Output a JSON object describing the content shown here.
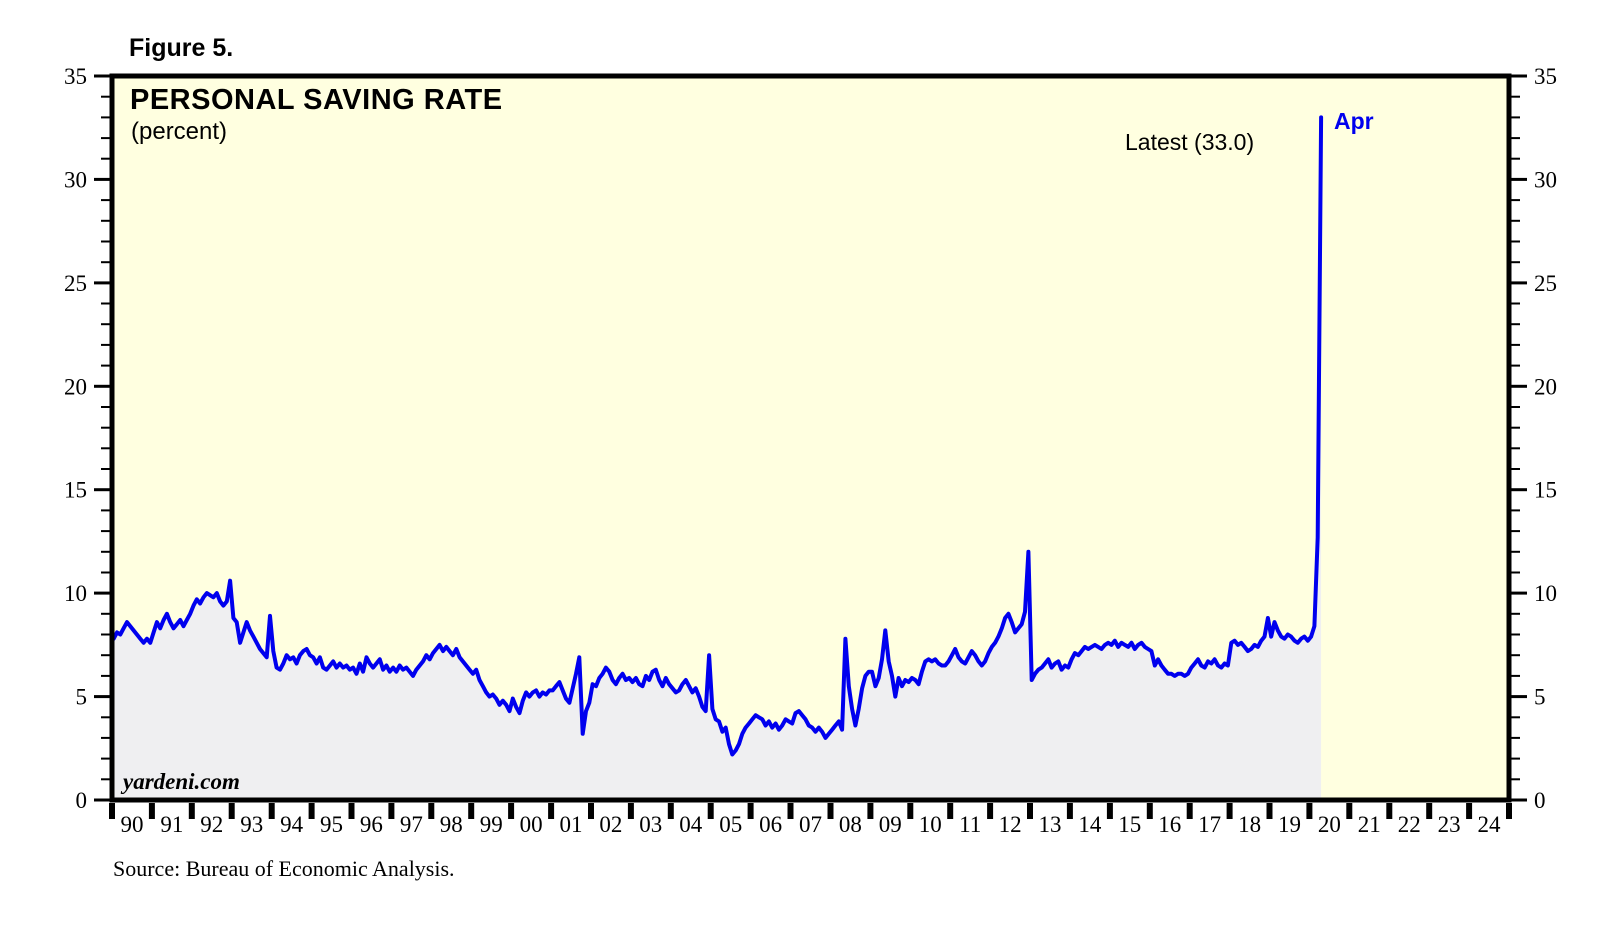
{
  "figure_label": "Figure 5.",
  "title": "PERSONAL SAVING RATE",
  "subtitle": "(percent)",
  "annotations": {
    "latest": "Latest (33.0)",
    "latest_month": "Apr",
    "watermark": "yardeni.com"
  },
  "source": "Source: Bureau of Economic Analysis.",
  "colors": {
    "line": "#0000EE",
    "plot_bg": "#FFFFE0",
    "area_fill": "#EFEFF1",
    "axis": "#000000",
    "annotation_blue": "#0000EE",
    "text": "#000000",
    "page_bg": "#FFFFFF"
  },
  "chart_data": {
    "type": "line",
    "title": "PERSONAL SAVING RATE",
    "ylabel": "percent",
    "frequency": "monthly",
    "x_start": "1990-01",
    "x_end": "2020-04",
    "x_range_years": [
      1990,
      2025
    ],
    "ylim": [
      0,
      35
    ],
    "y_major_ticks": [
      0,
      5,
      10,
      15,
      20,
      25,
      30,
      35
    ],
    "y_minor_step": 1,
    "grid": "off",
    "legend": "none",
    "area_under_line": true,
    "latest_value": 33.0,
    "latest_label": "Apr 2020",
    "x_tick_labels": [
      "90",
      "91",
      "92",
      "93",
      "94",
      "95",
      "96",
      "97",
      "98",
      "99",
      "00",
      "01",
      "02",
      "03",
      "04",
      "05",
      "06",
      "07",
      "08",
      "09",
      "10",
      "11",
      "12",
      "13",
      "14",
      "15",
      "16",
      "17",
      "18",
      "19",
      "20",
      "21",
      "22",
      "23",
      "24"
    ],
    "series": [
      {
        "name": "Personal saving rate (percent, monthly, Jan 1990 - Apr 2020)",
        "values": [
          7.8,
          8.1,
          8.0,
          8.3,
          8.6,
          8.4,
          8.2,
          8.0,
          7.8,
          7.6,
          7.8,
          7.6,
          8.1,
          8.6,
          8.3,
          8.7,
          9.0,
          8.6,
          8.3,
          8.5,
          8.7,
          8.4,
          8.7,
          9.0,
          9.4,
          9.7,
          9.5,
          9.8,
          10.0,
          9.9,
          9.8,
          10.0,
          9.6,
          9.4,
          9.6,
          10.6,
          8.8,
          8.6,
          7.6,
          8.1,
          8.6,
          8.2,
          7.9,
          7.6,
          7.3,
          7.1,
          6.9,
          8.9,
          7.2,
          6.4,
          6.3,
          6.6,
          7.0,
          6.8,
          6.9,
          6.6,
          7.0,
          7.2,
          7.3,
          7.0,
          6.9,
          6.6,
          6.9,
          6.4,
          6.3,
          6.5,
          6.7,
          6.4,
          6.6,
          6.4,
          6.5,
          6.3,
          6.4,
          6.1,
          6.6,
          6.2,
          6.9,
          6.6,
          6.4,
          6.6,
          6.8,
          6.3,
          6.5,
          6.2,
          6.4,
          6.2,
          6.5,
          6.3,
          6.4,
          6.2,
          6.0,
          6.3,
          6.5,
          6.7,
          7.0,
          6.8,
          7.1,
          7.3,
          7.5,
          7.2,
          7.4,
          7.2,
          7.0,
          7.3,
          6.9,
          6.7,
          6.5,
          6.3,
          6.1,
          6.3,
          5.8,
          5.5,
          5.2,
          5.0,
          5.1,
          4.9,
          4.6,
          4.8,
          4.6,
          4.3,
          4.9,
          4.5,
          4.2,
          4.8,
          5.2,
          5.0,
          5.2,
          5.3,
          5.0,
          5.2,
          5.1,
          5.3,
          5.3,
          5.5,
          5.7,
          5.3,
          4.9,
          4.7,
          5.4,
          6.1,
          6.9,
          3.2,
          4.3,
          4.7,
          5.6,
          5.5,
          5.9,
          6.1,
          6.4,
          6.2,
          5.8,
          5.6,
          5.9,
          6.1,
          5.8,
          5.9,
          5.7,
          5.9,
          5.6,
          5.5,
          6.0,
          5.8,
          6.2,
          6.3,
          5.8,
          5.5,
          5.9,
          5.6,
          5.4,
          5.2,
          5.3,
          5.6,
          5.8,
          5.5,
          5.2,
          5.4,
          5.0,
          4.5,
          4.3,
          7.0,
          4.4,
          3.9,
          3.8,
          3.3,
          3.5,
          2.7,
          2.2,
          2.4,
          2.7,
          3.2,
          3.5,
          3.7,
          3.9,
          4.1,
          4.0,
          3.9,
          3.6,
          3.8,
          3.5,
          3.7,
          3.4,
          3.6,
          3.9,
          3.8,
          3.7,
          4.2,
          4.3,
          4.1,
          3.9,
          3.6,
          3.5,
          3.3,
          3.5,
          3.3,
          3.0,
          3.2,
          3.4,
          3.6,
          3.8,
          3.4,
          7.8,
          5.5,
          4.4,
          3.6,
          4.4,
          5.4,
          6.0,
          6.2,
          6.2,
          5.5,
          5.9,
          6.8,
          8.2,
          6.7,
          6.0,
          5.0,
          5.9,
          5.5,
          5.8,
          5.7,
          5.9,
          5.8,
          5.6,
          6.2,
          6.7,
          6.8,
          6.7,
          6.8,
          6.6,
          6.5,
          6.5,
          6.7,
          7.0,
          7.3,
          6.9,
          6.7,
          6.6,
          6.9,
          7.2,
          7.0,
          6.7,
          6.5,
          6.7,
          7.1,
          7.4,
          7.6,
          7.9,
          8.3,
          8.8,
          9.0,
          8.6,
          8.1,
          8.3,
          8.5,
          9.1,
          12.0,
          5.8,
          6.1,
          6.3,
          6.4,
          6.6,
          6.8,
          6.4,
          6.6,
          6.7,
          6.3,
          6.5,
          6.4,
          6.8,
          7.1,
          7.0,
          7.2,
          7.4,
          7.3,
          7.4,
          7.5,
          7.4,
          7.3,
          7.5,
          7.6,
          7.5,
          7.7,
          7.4,
          7.6,
          7.5,
          7.4,
          7.6,
          7.3,
          7.5,
          7.6,
          7.4,
          7.3,
          7.2,
          6.5,
          6.8,
          6.5,
          6.3,
          6.1,
          6.1,
          6.0,
          6.1,
          6.1,
          6.0,
          6.1,
          6.4,
          6.6,
          6.8,
          6.5,
          6.4,
          6.7,
          6.6,
          6.8,
          6.5,
          6.4,
          6.6,
          6.5,
          7.6,
          7.7,
          7.5,
          7.6,
          7.4,
          7.2,
          7.3,
          7.5,
          7.4,
          7.7,
          7.9,
          8.8,
          7.9,
          8.6,
          8.2,
          7.9,
          7.8,
          8.0,
          7.9,
          7.7,
          7.6,
          7.8,
          7.9,
          7.7,
          7.9,
          8.4,
          12.7,
          33.0
        ]
      }
    ]
  }
}
